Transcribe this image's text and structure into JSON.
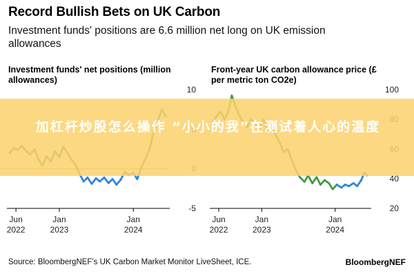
{
  "header": {
    "title": "Record Bullish Bets on UK Carbon",
    "subtitle": "Investment funds' positions are 6.6 million net long on UK emission allowances"
  },
  "footer": {
    "source": "Source: BloombergNEF's UK Carbon Market Monitor LiveSheet, ICE.",
    "brand": "BloombergNEF"
  },
  "overlay": {
    "text": "加杠杆炒股怎么操作 “小小的我”在测试着人心的温度"
  },
  "colors": {
    "green": "#3f9a3a",
    "blue": "#2e85d8",
    "zero_line": "#c98a2e",
    "axis": "#000000",
    "overlay": "#fcd26e"
  },
  "chart_data": [
    {
      "type": "line",
      "title": "Investment funds' net positions (million allowances)",
      "ylim": [
        -5,
        10
      ],
      "yticks": [
        10,
        5,
        0,
        -5
      ],
      "xlim": [
        "2022-05-01",
        "2024-06-15"
      ],
      "xticks": [
        {
          "date": "2022-06-01",
          "label": "Jun",
          "sub": "2022"
        },
        {
          "date": "2023-01-01",
          "label": "Jan",
          "sub": "2023"
        },
        {
          "date": "2024-01-01",
          "label": "Jan",
          "sub": "2024"
        }
      ],
      "zero_line": true,
      "series": [
        {
          "color": "green_blue_by_sign",
          "points": [
            [
              "2022-05-01",
              2.0
            ],
            [
              "2022-05-20",
              2.6
            ],
            [
              "2022-06-10",
              2.4
            ],
            [
              "2022-07-01",
              2.9
            ],
            [
              "2022-07-20",
              2.3
            ],
            [
              "2022-08-10",
              1.8
            ],
            [
              "2022-09-01",
              2.5
            ],
            [
              "2022-09-20",
              1.2
            ],
            [
              "2022-10-10",
              0.4
            ],
            [
              "2022-10-30",
              1.6
            ],
            [
              "2022-11-20",
              0.9
            ],
            [
              "2022-12-10",
              2.2
            ],
            [
              "2023-01-01",
              1.5
            ],
            [
              "2023-01-20",
              2.8
            ],
            [
              "2023-02-10",
              2.0
            ],
            [
              "2023-03-01",
              1.2
            ],
            [
              "2023-03-20",
              0.6
            ],
            [
              "2023-04-10",
              -0.6
            ],
            [
              "2023-05-01",
              -1.6
            ],
            [
              "2023-05-20",
              -1.1
            ],
            [
              "2023-06-10",
              -1.9
            ],
            [
              "2023-07-01",
              -1.2
            ],
            [
              "2023-07-20",
              -1.6
            ],
            [
              "2023-08-10",
              -1.1
            ],
            [
              "2023-09-01",
              -1.8
            ],
            [
              "2023-09-20",
              -1.3
            ],
            [
              "2023-10-10",
              -2.0
            ],
            [
              "2023-10-30",
              -1.4
            ],
            [
              "2023-11-20",
              -0.4
            ],
            [
              "2023-12-10",
              -0.8
            ],
            [
              "2024-01-01",
              -0.5
            ],
            [
              "2024-01-20",
              -1.3
            ],
            [
              "2024-02-10",
              0.2
            ],
            [
              "2024-03-01",
              1.3
            ],
            [
              "2024-03-20",
              2.4
            ],
            [
              "2024-04-10",
              4.6
            ],
            [
              "2024-05-01",
              6.0
            ],
            [
              "2024-05-20",
              7.5
            ],
            [
              "2024-06-10",
              6.6
            ]
          ]
        }
      ]
    },
    {
      "type": "line",
      "title": "Front-year UK carbon allowance price (£ per metric ton CO2e)",
      "ylim": [
        20,
        100
      ],
      "yticks": [
        100,
        80,
        60,
        40,
        20
      ],
      "xlim": [
        "2022-05-01",
        "2024-06-15"
      ],
      "xticks": [
        {
          "date": "2022-06-01",
          "label": "Jun",
          "sub": "2022"
        },
        {
          "date": "2023-01-01",
          "label": "Jan",
          "sub": "2023"
        },
        {
          "date": "2024-01-01",
          "label": "Jan",
          "sub": "2024"
        }
      ],
      "series": [
        {
          "color": "green_to_blue",
          "split_date": "2024-01-01",
          "points": [
            [
              "2022-05-01",
              78
            ],
            [
              "2022-05-20",
              82
            ],
            [
              "2022-06-10",
              85
            ],
            [
              "2022-07-01",
              80
            ],
            [
              "2022-07-20",
              86
            ],
            [
              "2022-08-05",
              96
            ],
            [
              "2022-08-20",
              90
            ],
            [
              "2022-09-10",
              83
            ],
            [
              "2022-10-01",
              78
            ],
            [
              "2022-10-20",
              75
            ],
            [
              "2022-11-10",
              80
            ],
            [
              "2022-12-01",
              76
            ],
            [
              "2022-12-20",
              74
            ],
            [
              "2023-01-10",
              80
            ],
            [
              "2023-02-01",
              72
            ],
            [
              "2023-02-20",
              76
            ],
            [
              "2023-03-10",
              70
            ],
            [
              "2023-04-01",
              64
            ],
            [
              "2023-04-20",
              58
            ],
            [
              "2023-05-10",
              60
            ],
            [
              "2023-06-01",
              52
            ],
            [
              "2023-06-20",
              46
            ],
            [
              "2023-07-10",
              41
            ],
            [
              "2023-08-01",
              38
            ],
            [
              "2023-08-20",
              42
            ],
            [
              "2023-09-10",
              37
            ],
            [
              "2023-10-01",
              41
            ],
            [
              "2023-10-20",
              36
            ],
            [
              "2023-11-10",
              39
            ],
            [
              "2023-12-01",
              37
            ],
            [
              "2023-12-20",
              33
            ],
            [
              "2024-01-10",
              36
            ],
            [
              "2024-02-01",
              34
            ],
            [
              "2024-02-20",
              36
            ],
            [
              "2024-03-10",
              35
            ],
            [
              "2024-04-01",
              37
            ],
            [
              "2024-04-20",
              35
            ],
            [
              "2024-05-10",
              39
            ],
            [
              "2024-05-25",
              44
            ],
            [
              "2024-06-10",
              42
            ]
          ]
        }
      ]
    }
  ]
}
